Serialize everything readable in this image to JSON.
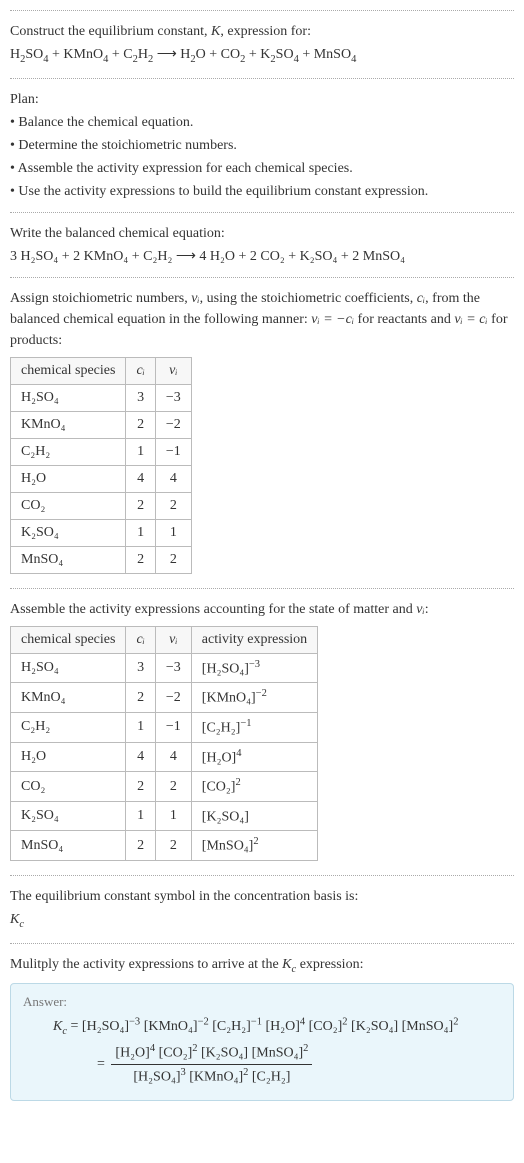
{
  "intro": {
    "line1_pre": "Construct the equilibrium constant, ",
    "line1_K": "K",
    "line1_post": ", expression for:",
    "eq_lhs_parts": [
      "H",
      "2",
      "SO",
      "4",
      " + KMnO",
      "4",
      " + C",
      "2",
      "H",
      "2"
    ],
    "arrow": " ⟶ ",
    "eq_rhs_parts": [
      "H",
      "2",
      "O + CO",
      "2",
      " + K",
      "2",
      "SO",
      "4",
      " + MnSO",
      "4"
    ]
  },
  "plan": {
    "title": "Plan:",
    "b1": "• Balance the chemical equation.",
    "b2": "• Determine the stoichiometric numbers.",
    "b3": "• Assemble the activity expression for each chemical species.",
    "b4": "• Use the activity expressions to build the equilibrium constant expression."
  },
  "balanced": {
    "title": "Write the balanced chemical equation:",
    "lhs": "3 H₂SO₄ + 2 KMnO₄ + C₂H₂",
    "arrow": " ⟶ ",
    "rhs": "4 H₂O + 2 CO₂ + K₂SO₄ + 2 MnSO₄"
  },
  "stoich": {
    "intro_a": "Assign stoichiometric numbers, ",
    "nu_i": "νᵢ",
    "intro_b": ", using the stoichiometric coefficients, ",
    "c_i": "cᵢ",
    "intro_c": ", from the balanced chemical equation in the following manner: ",
    "rel1": "νᵢ = −cᵢ",
    "intro_d": " for reactants and ",
    "rel2": "νᵢ = cᵢ",
    "intro_e": " for products:",
    "h1": "chemical species",
    "h2": "cᵢ",
    "h3": "νᵢ",
    "rows": [
      {
        "sp": "H₂SO₄",
        "c": "3",
        "v": "−3"
      },
      {
        "sp": "KMnO₄",
        "c": "2",
        "v": "−2"
      },
      {
        "sp": "C₂H₂",
        "c": "1",
        "v": "−1"
      },
      {
        "sp": "H₂O",
        "c": "4",
        "v": "4"
      },
      {
        "sp": "CO₂",
        "c": "2",
        "v": "2"
      },
      {
        "sp": "K₂SO₄",
        "c": "1",
        "v": "1"
      },
      {
        "sp": "MnSO₄",
        "c": "2",
        "v": "2"
      }
    ]
  },
  "activity": {
    "title_a": "Assemble the activity expressions accounting for the state of matter and ",
    "title_b": "νᵢ",
    "title_c": ":",
    "h1": "chemical species",
    "h2": "cᵢ",
    "h3": "νᵢ",
    "h4": "activity expression",
    "rows": [
      {
        "sp": "H₂SO₄",
        "c": "3",
        "v": "−3",
        "base": "[H₂SO₄]",
        "exp": "−3"
      },
      {
        "sp": "KMnO₄",
        "c": "2",
        "v": "−2",
        "base": "[KMnO₄]",
        "exp": "−2"
      },
      {
        "sp": "C₂H₂",
        "c": "1",
        "v": "−1",
        "base": "[C₂H₂]",
        "exp": "−1"
      },
      {
        "sp": "H₂O",
        "c": "4",
        "v": "4",
        "base": "[H₂O]",
        "exp": "4"
      },
      {
        "sp": "CO₂",
        "c": "2",
        "v": "2",
        "base": "[CO₂]",
        "exp": "2"
      },
      {
        "sp": "K₂SO₄",
        "c": "1",
        "v": "1",
        "base": "[K₂SO₄]",
        "exp": ""
      },
      {
        "sp": "MnSO₄",
        "c": "2",
        "v": "2",
        "base": "[MnSO₄]",
        "exp": "2"
      }
    ]
  },
  "kc_symbol": {
    "title": "The equilibrium constant symbol in the concentration basis is:",
    "sym_pre": "K",
    "sym_sub": "c"
  },
  "final": {
    "title_a": "Mulitply the activity expressions to arrive at the ",
    "title_Kc_pre": "K",
    "title_Kc_sub": "c",
    "title_b": " expression:",
    "answer_label": "Answer:",
    "line1_lhs_pre": "K",
    "line1_lhs_sub": "c",
    "eq": " = ",
    "line1_terms": [
      {
        "b": "[H₂SO₄]",
        "e": "−3"
      },
      {
        "b": "[KMnO₄]",
        "e": "−2"
      },
      {
        "b": "[C₂H₂]",
        "e": "−1"
      },
      {
        "b": "[H₂O]",
        "e": "4"
      },
      {
        "b": "[CO₂]",
        "e": "2"
      },
      {
        "b": "[K₂SO₄]",
        "e": ""
      },
      {
        "b": "[MnSO₄]",
        "e": "2"
      }
    ],
    "line2_eq": "= ",
    "num_terms": [
      {
        "b": "[H₂O]",
        "e": "4"
      },
      {
        "b": "[CO₂]",
        "e": "2"
      },
      {
        "b": "[K₂SO₄]",
        "e": ""
      },
      {
        "b": "[MnSO₄]",
        "e": "2"
      }
    ],
    "den_terms": [
      {
        "b": "[H₂SO₄]",
        "e": "3"
      },
      {
        "b": "[KMnO₄]",
        "e": "2"
      },
      {
        "b": "[C₂H₂]",
        "e": ""
      }
    ]
  },
  "colors": {
    "border": "#bbb",
    "answer_bg": "#eaf6fb",
    "answer_border": "#bcd9e6"
  }
}
